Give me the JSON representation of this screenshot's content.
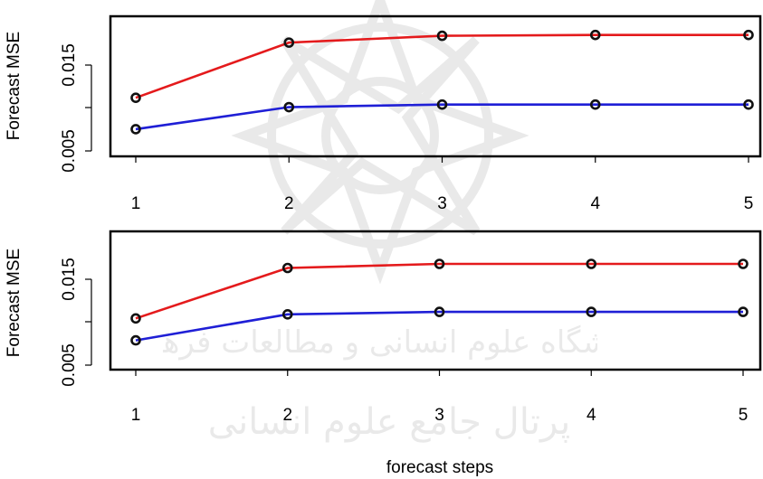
{
  "chart_data": [
    {
      "type": "line",
      "xlabel": "",
      "ylabel": "Forecast MSE",
      "x": [
        1,
        2,
        3,
        4,
        5
      ],
      "xticks": [
        "1",
        "2",
        "3",
        "4",
        "5"
      ],
      "yticks": [
        "0.005",
        "0.015"
      ],
      "ylim": [
        0.004,
        0.0205
      ],
      "grid": false,
      "series": [
        {
          "color": "#e41a1c",
          "values": [
            0.0109,
            0.0174,
            0.0182,
            0.0183,
            0.0183
          ]
        },
        {
          "color": "#1f1fd6",
          "values": [
            0.0072,
            0.0098,
            0.0101,
            0.0101,
            0.0101
          ]
        }
      ]
    },
    {
      "type": "line",
      "xlabel": "forecast steps",
      "ylabel": "Forecast MSE",
      "x": [
        1,
        2,
        3,
        4,
        5
      ],
      "xticks": [
        "1",
        "2",
        "3",
        "4",
        "5"
      ],
      "yticks": [
        "0.005",
        "0.015"
      ],
      "ylim": [
        0.0035,
        0.0205
      ],
      "grid": false,
      "series": [
        {
          "color": "#e41a1c",
          "values": [
            0.0098,
            0.016,
            0.0165,
            0.0165,
            0.0165
          ]
        },
        {
          "color": "#1f1fd6",
          "values": [
            0.0071,
            0.0103,
            0.0106,
            0.0106,
            0.0106
          ]
        }
      ]
    }
  ],
  "watermark": {
    "line1": "پژوهشگاه علوم انسانی و مطالعات فرهنگی",
    "line2": "پرتال جامع علوم انسانی"
  }
}
